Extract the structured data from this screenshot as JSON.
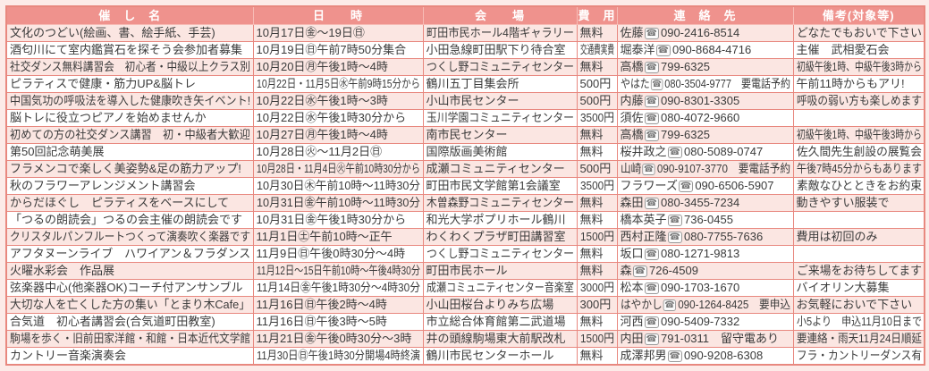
{
  "colors": {
    "page_bg": "#fcebe8",
    "header_bg": "#ef928d",
    "header_text": "#ffffff",
    "grid_border": "#e8887f",
    "row_alt_bg": "#fbe6e2",
    "row_bg": "#ffffff",
    "text": "#3b3b3b"
  },
  "table": {
    "phone_icon": "☎",
    "columns": [
      {
        "key": "name",
        "label": "催　し　名"
      },
      {
        "key": "datetime",
        "label": "日　　時"
      },
      {
        "key": "venue",
        "label": "会　　場"
      },
      {
        "key": "fee",
        "label": "費　用"
      },
      {
        "key": "contact",
        "label": "連　絡　先"
      },
      {
        "key": "remarks",
        "label": "備考(対象等)"
      }
    ],
    "rows": [
      {
        "name": "文化のつどい(絵画、書、絵手紙、手芸)",
        "datetime": "10月17日㊎〜19日㊐",
        "venue": "町田市民ホール4階ギャラリー",
        "fee": "無料",
        "contact": "佐藤☎090-2416-8514",
        "remarks": "どなたでもおいで下さい"
      },
      {
        "name": "酒匂川にて室内鑑賞石を探そう会参加者募集",
        "datetime": "10月19日㊐午前7時50分集合",
        "venue": "小田急線町田駅下り待合室",
        "fee": "交通費実費",
        "contact": "堀泰洋☎090-8684-4716",
        "remarks": "主催　武相愛石会"
      },
      {
        "name": "社交ダンス無料講習会　初心者・中級以上クラス別",
        "datetime": "10月20日㊊午後1時〜4時",
        "venue": "つくし野コミュニティセンター",
        "fee": "無料",
        "contact": "高橋☎799-6325",
        "remarks": "初級午後1時、中級午後3時から"
      },
      {
        "name": "ピラティスで健康・筋力UP&脳トレ",
        "datetime": "10月22日・11月5日㊌午前9時15分から",
        "venue": "鶴川五丁目集会所",
        "fee": "500円",
        "contact": "やはた☎080-3504-9777　要電話予約",
        "remarks": "午前11時からもアリ!"
      },
      {
        "name": "中国気功の呼吸法を導入した健康吹き矢イベント!",
        "datetime": "10月22日㊌午後1時〜3時",
        "venue": "小山市民センター",
        "fee": "500円",
        "contact": "内藤☎090-8301-3305",
        "remarks": "呼吸の弱い方も楽しめます"
      },
      {
        "name": "脳トレに役立つピアノを始めませんか",
        "datetime": "10月22日㊌午後1時30分から",
        "venue": "玉川学園コミュニティセンター",
        "fee": "3500円",
        "contact": "須佐☎080-4072-9660",
        "remarks": ""
      },
      {
        "name": "初めての方の社交ダンス講習　初・中級者大歓迎",
        "datetime": "10月27日㊊午後1時〜4時",
        "venue": "南市民センター",
        "fee": "無料",
        "contact": "高橋☎799-6325",
        "remarks": "初級午後1時、中級午後3時から"
      },
      {
        "name": "第50回記念萌美展",
        "datetime": "10月28日㊋〜11月2日㊐",
        "venue": "国際版画美術館",
        "fee": "無料",
        "contact": "桜井政之☎080-5089-0747",
        "remarks": "佐久間先生創設の展覧会"
      },
      {
        "name": "フラメンコで楽しく美姿勢&足の筋力アップ!",
        "datetime": "10月28日・11月4日㊋午前10時30分から",
        "venue": "成瀬コミュニティセンター",
        "fee": "500円",
        "contact": "山崎☎090-9107-3770　要電話予約",
        "remarks": "午後7時45分からもあります"
      },
      {
        "name": "秋のフラワーアレンジメント講習会",
        "datetime": "10月30日㊍午前10時〜11時30分",
        "venue": "町田市民文学館第1会議室",
        "fee": "3500円",
        "contact": "フラワーズ☎090-6506-5907",
        "remarks": "素敵なひとときをお約束"
      },
      {
        "name": "からだほぐし　ピラティスをベースにして",
        "datetime": "10月31日㊎午前10時〜11時30分",
        "venue": "木曽森野コミュニティセンター",
        "fee": "無料",
        "contact": "森田☎080-3455-7234",
        "remarks": "動きやすい服装で"
      },
      {
        "name": "「つるの朗読会」つるの会主催の朗読会です",
        "datetime": "10月31日㊎午後1時30分から",
        "venue": "和光大学ポプリホール鶴川",
        "fee": "無料",
        "contact": "橋本英子☎736-0455",
        "remarks": ""
      },
      {
        "name": "クリスタルパンフルートつくって演奏吹く楽器です",
        "datetime": "11月1日㊏午前10時〜正午",
        "venue": "わくわくプラザ町田講習室",
        "fee": "1500円",
        "contact": "西村正隆☎080-7755-7636",
        "remarks": "費用は初回のみ"
      },
      {
        "name": "アフタヌーンライブ　ハワイアン＆フラダンス",
        "datetime": "11月9日㊐午後0時30分〜4時",
        "venue": "つくし野コミュニティセンター",
        "fee": "無料",
        "contact": "坂口☎080-1271-9813",
        "remarks": ""
      },
      {
        "name": "火曜水彩会　作品展",
        "datetime": "11月12日〜15日午前10時〜午後4時30分",
        "venue": "町田市民ホール",
        "fee": "無料",
        "contact": "森☎726-4509",
        "remarks": "ご来場をお待ちしてます"
      },
      {
        "name": "弦楽器中心(他楽器OK)コーチ付アンサンブル",
        "datetime": "11月14日㊎午後1時30分〜4時30分",
        "venue": "成瀬コミュニティセンター音楽室",
        "fee": "3000円",
        "contact": "松本☎090-1703-1670",
        "remarks": "バイオリン大募集"
      },
      {
        "name": "大切な人を亡くした方の集い「とまり木Cafe」",
        "datetime": "11月16日㊐午後2時〜4時",
        "venue": "小山田桜台よりみち広場",
        "fee": "300円",
        "contact": "はやかし☎090-1264-8425　要申込",
        "remarks": "お気軽においで下さい"
      },
      {
        "name": "合気道　初心者講習会(合気道町田教室)",
        "datetime": "11月16日㊐午後3時〜5時",
        "venue": "市立総合体育館第二武道場",
        "fee": "無料",
        "contact": "河西☎090-5409-7332",
        "remarks": "小5より　申込11月10日まで"
      },
      {
        "name": "駒場を歩く・旧前田家洋館・和館・日本近代文学館",
        "datetime": "11月21日㊎午後0時30分〜3時",
        "venue": "井の頭線駒場東大前駅改札",
        "fee": "1500円",
        "contact": "内田☎791-0311　留守電あり",
        "remarks": "要連絡・雨天11月24日順延"
      },
      {
        "name": "カントリー音楽演奏会",
        "datetime": "11月30日㊐午後1時30分開場4時終演",
        "venue": "鶴川市民センターホール",
        "fee": "無料",
        "contact": "成澤邦男☎090-9208-6308",
        "remarks": "フラ・カントリーダンス有"
      }
    ]
  }
}
